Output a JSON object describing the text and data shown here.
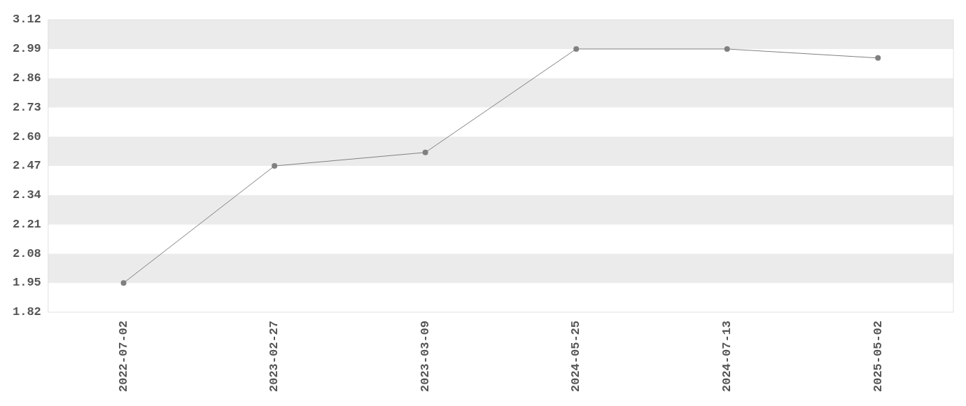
{
  "chart_data": {
    "type": "line",
    "categories": [
      "2022-07-02",
      "2023-02-27",
      "2023-03-09",
      "2024-05-25",
      "2024-07-13",
      "2025-05-02"
    ],
    "series": [
      {
        "color": "#808080",
        "values": [
          1.95,
          2.47,
          2.53,
          2.99,
          2.99,
          2.95
        ]
      }
    ],
    "ylim": [
      1.82,
      3.12
    ],
    "yticks": [
      1.82,
      1.95,
      2.08,
      2.21,
      2.34,
      2.47,
      {
        "value": 2.6,
        "label": "2.60"
      },
      2.73,
      2.86,
      2.99,
      3.12
    ],
    "bands": [
      {
        "axis": "y",
        "from": 1.95,
        "to": 2.08,
        "color": "#ebebeb"
      },
      {
        "axis": "y",
        "from": 2.21,
        "to": 2.34,
        "color": "#ebebeb"
      },
      {
        "axis": "y",
        "from": 2.47,
        "to": 2.6,
        "color": "#ebebeb"
      },
      {
        "axis": "y",
        "from": 2.73,
        "to": 2.86,
        "color": "#ebebeb"
      },
      {
        "axis": "y",
        "from": 2.99,
        "to": 3.12,
        "color": "#ebebeb"
      }
    ],
    "grid": false,
    "legend": false,
    "marker": "circle",
    "line_style": "solid"
  }
}
